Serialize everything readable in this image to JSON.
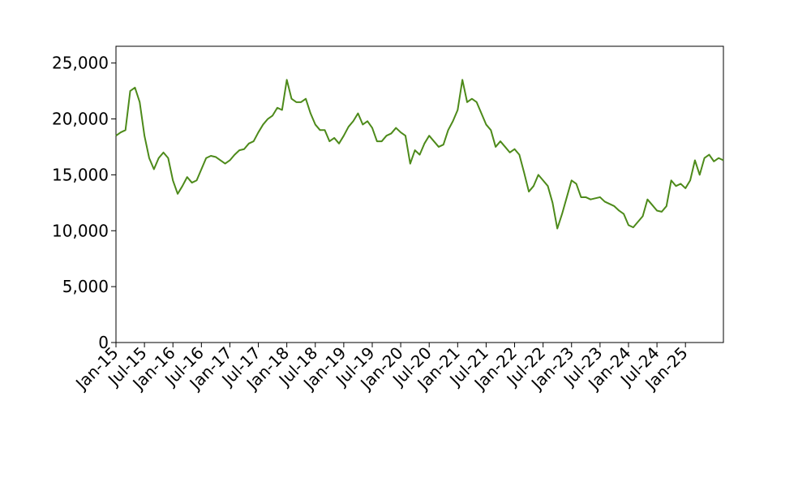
{
  "chart_data": {
    "type": "line",
    "x": [
      "2015-01",
      "2015-02",
      "2015-03",
      "2015-04",
      "2015-05",
      "2015-06",
      "2015-07",
      "2015-08",
      "2015-09",
      "2015-10",
      "2015-11",
      "2015-12",
      "2016-01",
      "2016-02",
      "2016-03",
      "2016-04",
      "2016-05",
      "2016-06",
      "2016-07",
      "2016-08",
      "2016-09",
      "2016-10",
      "2016-11",
      "2016-12",
      "2017-01",
      "2017-02",
      "2017-03",
      "2017-04",
      "2017-05",
      "2017-06",
      "2017-07",
      "2017-08",
      "2017-09",
      "2017-10",
      "2017-11",
      "2017-12",
      "2018-01",
      "2018-02",
      "2018-03",
      "2018-04",
      "2018-05",
      "2018-06",
      "2018-07",
      "2018-08",
      "2018-09",
      "2018-10",
      "2018-11",
      "2018-12",
      "2019-01",
      "2019-02",
      "2019-03",
      "2019-04",
      "2019-05",
      "2019-06",
      "2019-07",
      "2019-08",
      "2019-09",
      "2019-10",
      "2019-11",
      "2019-12",
      "2020-01",
      "2020-02",
      "2020-03",
      "2020-04",
      "2020-05",
      "2020-06",
      "2020-07",
      "2020-08",
      "2020-09",
      "2020-10",
      "2020-11",
      "2020-12",
      "2021-01",
      "2021-02",
      "2021-03",
      "2021-04",
      "2021-05",
      "2021-06",
      "2021-07",
      "2021-08",
      "2021-09",
      "2021-10",
      "2021-11",
      "2021-12",
      "2022-01",
      "2022-02",
      "2022-03",
      "2022-04",
      "2022-05",
      "2022-06",
      "2022-07",
      "2022-08",
      "2022-09",
      "2022-10",
      "2022-11",
      "2022-12",
      "2023-01",
      "2023-02",
      "2023-03",
      "2023-04",
      "2023-05",
      "2023-06",
      "2023-07",
      "2023-08",
      "2023-09",
      "2023-10",
      "2023-11",
      "2023-12",
      "2024-01",
      "2024-02",
      "2024-03",
      "2024-04",
      "2024-05",
      "2024-06",
      "2024-07",
      "2024-08",
      "2024-09",
      "2024-10",
      "2024-11",
      "2024-12",
      "2025-01",
      "2025-02",
      "2025-03",
      "2025-04",
      "2025-05",
      "2025-06",
      "2025-07",
      "2025-08",
      "2025-09"
    ],
    "series": [
      {
        "color": "#4d8a1a",
        "values": [
          18500,
          18800,
          19000,
          22500,
          22800,
          21500,
          18500,
          16500,
          15500,
          16500,
          17000,
          16500,
          14500,
          13300,
          14000,
          14800,
          14300,
          14500,
          15500,
          16500,
          16700,
          16600,
          16300,
          16000,
          16300,
          16800,
          17200,
          17300,
          17800,
          18000,
          18800,
          19500,
          20000,
          20300,
          21000,
          20800,
          23500,
          21800,
          21500,
          21500,
          21800,
          20500,
          19500,
          19000,
          19000,
          18000,
          18300,
          17800,
          18500,
          19300,
          19800,
          20500,
          19500,
          19800,
          19200,
          18000,
          18000,
          18500,
          18700,
          19200,
          18800,
          18500,
          16000,
          17200,
          16800,
          17800,
          18500,
          18000,
          17500,
          17700,
          19000,
          19800,
          20800,
          23500,
          21500,
          21800,
          21500,
          20500,
          19500,
          19000,
          17500,
          18000,
          17500,
          17000,
          17300,
          16800,
          15200,
          13500,
          14000,
          15000,
          14500,
          14000,
          12500,
          10200,
          11500,
          13000,
          14500,
          14200,
          13000,
          13000,
          12800,
          12900,
          13000,
          12600,
          12400,
          12200,
          11800,
          11500,
          10500,
          10300,
          10800,
          11300,
          12800,
          12300,
          11800,
          11700,
          12200,
          14500,
          14000,
          14200,
          13800,
          14500,
          16300,
          15000,
          16500,
          16800,
          16200,
          16500,
          16300
        ]
      }
    ],
    "xlim": [
      "2015-01",
      "2025-09"
    ],
    "xticks": [
      {
        "value": "2015-01",
        "label": "Jan-15"
      },
      {
        "value": "2015-07",
        "label": "Jul-15"
      },
      {
        "value": "2016-01",
        "label": "Jan-16"
      },
      {
        "value": "2016-07",
        "label": "Jul-16"
      },
      {
        "value": "2017-01",
        "label": "Jan-17"
      },
      {
        "value": "2017-07",
        "label": "Jul-17"
      },
      {
        "value": "2018-01",
        "label": "Jan-18"
      },
      {
        "value": "2018-07",
        "label": "Jul-18"
      },
      {
        "value": "2019-01",
        "label": "Jan-19"
      },
      {
        "value": "2019-07",
        "label": "Jul-19"
      },
      {
        "value": "2020-01",
        "label": "Jan-20"
      },
      {
        "value": "2020-07",
        "label": "Jul-20"
      },
      {
        "value": "2021-01",
        "label": "Jan-21"
      },
      {
        "value": "2021-07",
        "label": "Jul-21"
      },
      {
        "value": "2022-01",
        "label": "Jan-22"
      },
      {
        "value": "2022-07",
        "label": "Jul-22"
      },
      {
        "value": "2023-01",
        "label": "Jan-23"
      },
      {
        "value": "2023-07",
        "label": "Jul-23"
      },
      {
        "value": "2024-01",
        "label": "Jan-24"
      },
      {
        "value": "2024-07",
        "label": "Jul-24"
      },
      {
        "value": "2025-01",
        "label": "Jan-25"
      }
    ],
    "ylim": [
      0,
      26500
    ],
    "yticks": [
      0,
      {
        "value": 5000,
        "label": "5,000"
      },
      {
        "value": 10000,
        "label": "10,000"
      },
      {
        "value": 15000,
        "label": "15,000"
      },
      {
        "value": 20000,
        "label": "20,000"
      },
      {
        "value": 25000,
        "label": "25,000"
      }
    ],
    "grid": false
  }
}
